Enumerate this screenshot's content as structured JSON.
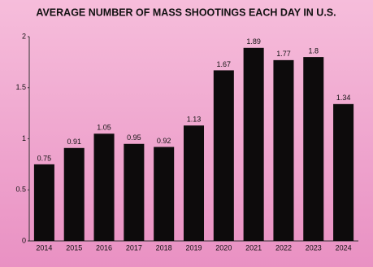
{
  "chart_data": {
    "type": "bar",
    "title": "AVERAGE NUMBER OF MASS SHOOTINGS EACH DAY IN U.S.",
    "categories": [
      "2014",
      "2015",
      "2016",
      "2017",
      "2018",
      "2019",
      "2020",
      "2021",
      "2022",
      "2023",
      "2024"
    ],
    "values": [
      0.75,
      0.91,
      1.05,
      0.95,
      0.92,
      1.13,
      1.67,
      1.89,
      1.77,
      1.8,
      1.34
    ],
    "color": "#0d0b0c",
    "ylim": [
      0,
      2
    ],
    "yticks": [
      0,
      0.5,
      1,
      1.5,
      2
    ],
    "grid": false
  }
}
